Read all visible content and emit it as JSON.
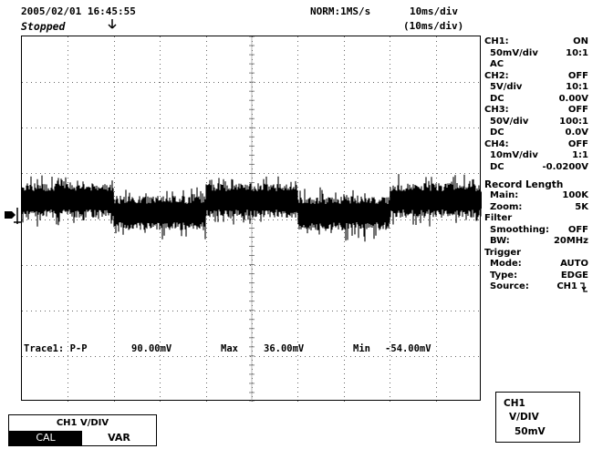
{
  "header": {
    "datetime": "2005/02/01  16:45:55",
    "status": "Stopped",
    "trigger_mode_rate": "NORM:1MS/s",
    "timebase": "10ms/div",
    "zoom_timebase": "(10ms/div)"
  },
  "markers": {
    "ground_marker": "1",
    "trigger_pos_icon": "trigger-position-icon"
  },
  "measurements": {
    "trace": "Trace1: P-P",
    "pp_value": "90.00mV",
    "max_label": "Max",
    "max_value": "36.00mV",
    "min_label": "Min",
    "min_value": "-54.00mV"
  },
  "sidebar": {
    "ch1": {
      "label": "CH1:",
      "state": "ON",
      "vdiv": "50mV/div",
      "probe": "10:1",
      "coupling": "AC",
      "offset": ""
    },
    "ch2": {
      "label": "CH2:",
      "state": "OFF",
      "vdiv": "5V/div",
      "probe": "10:1",
      "coupling": "DC",
      "offset": "0.00V"
    },
    "ch3": {
      "label": "CH3:",
      "state": "OFF",
      "vdiv": "50V/div",
      "probe": "100:1",
      "coupling": "DC",
      "offset": "0.0V"
    },
    "ch4": {
      "label": "CH4:",
      "state": "OFF",
      "vdiv": "10mV/div",
      "probe": "1:1",
      "coupling": "DC",
      "offset": "-0.0200V"
    },
    "record": {
      "title": "Record Length",
      "main_label": "Main:",
      "main_value": "100K",
      "zoom_label": "Zoom:",
      "zoom_value": "5K"
    },
    "filter": {
      "title": "Filter",
      "smoothing_label": "Smoothing:",
      "smoothing_value": "OFF",
      "bw_label": "BW:",
      "bw_value": "20MHz"
    },
    "trigger": {
      "title": "Trigger",
      "mode_label": "Mode:",
      "mode_value": "AUTO",
      "type_label": "Type:",
      "type_value": "EDGE",
      "source_label": "Source:",
      "source_value": "CH1"
    }
  },
  "control": {
    "title": "CH1 V/DIV",
    "cal": "CAL",
    "var": "VAR"
  },
  "vdiv_box": {
    "line1": "CH1",
    "line2": "V/DIV",
    "line3": "50mV"
  },
  "waveform": {
    "description_free": true,
    "segments": [
      {
        "start_div": 0.0,
        "end_div": 2.0,
        "level": "high"
      },
      {
        "start_div": 2.0,
        "end_div": 4.0,
        "level": "low"
      },
      {
        "start_div": 4.0,
        "end_div": 6.0,
        "level": "high"
      },
      {
        "start_div": 6.0,
        "end_div": 8.0,
        "level": "low"
      },
      {
        "start_div": 8.0,
        "end_div": 10.0,
        "level": "high"
      }
    ]
  }
}
